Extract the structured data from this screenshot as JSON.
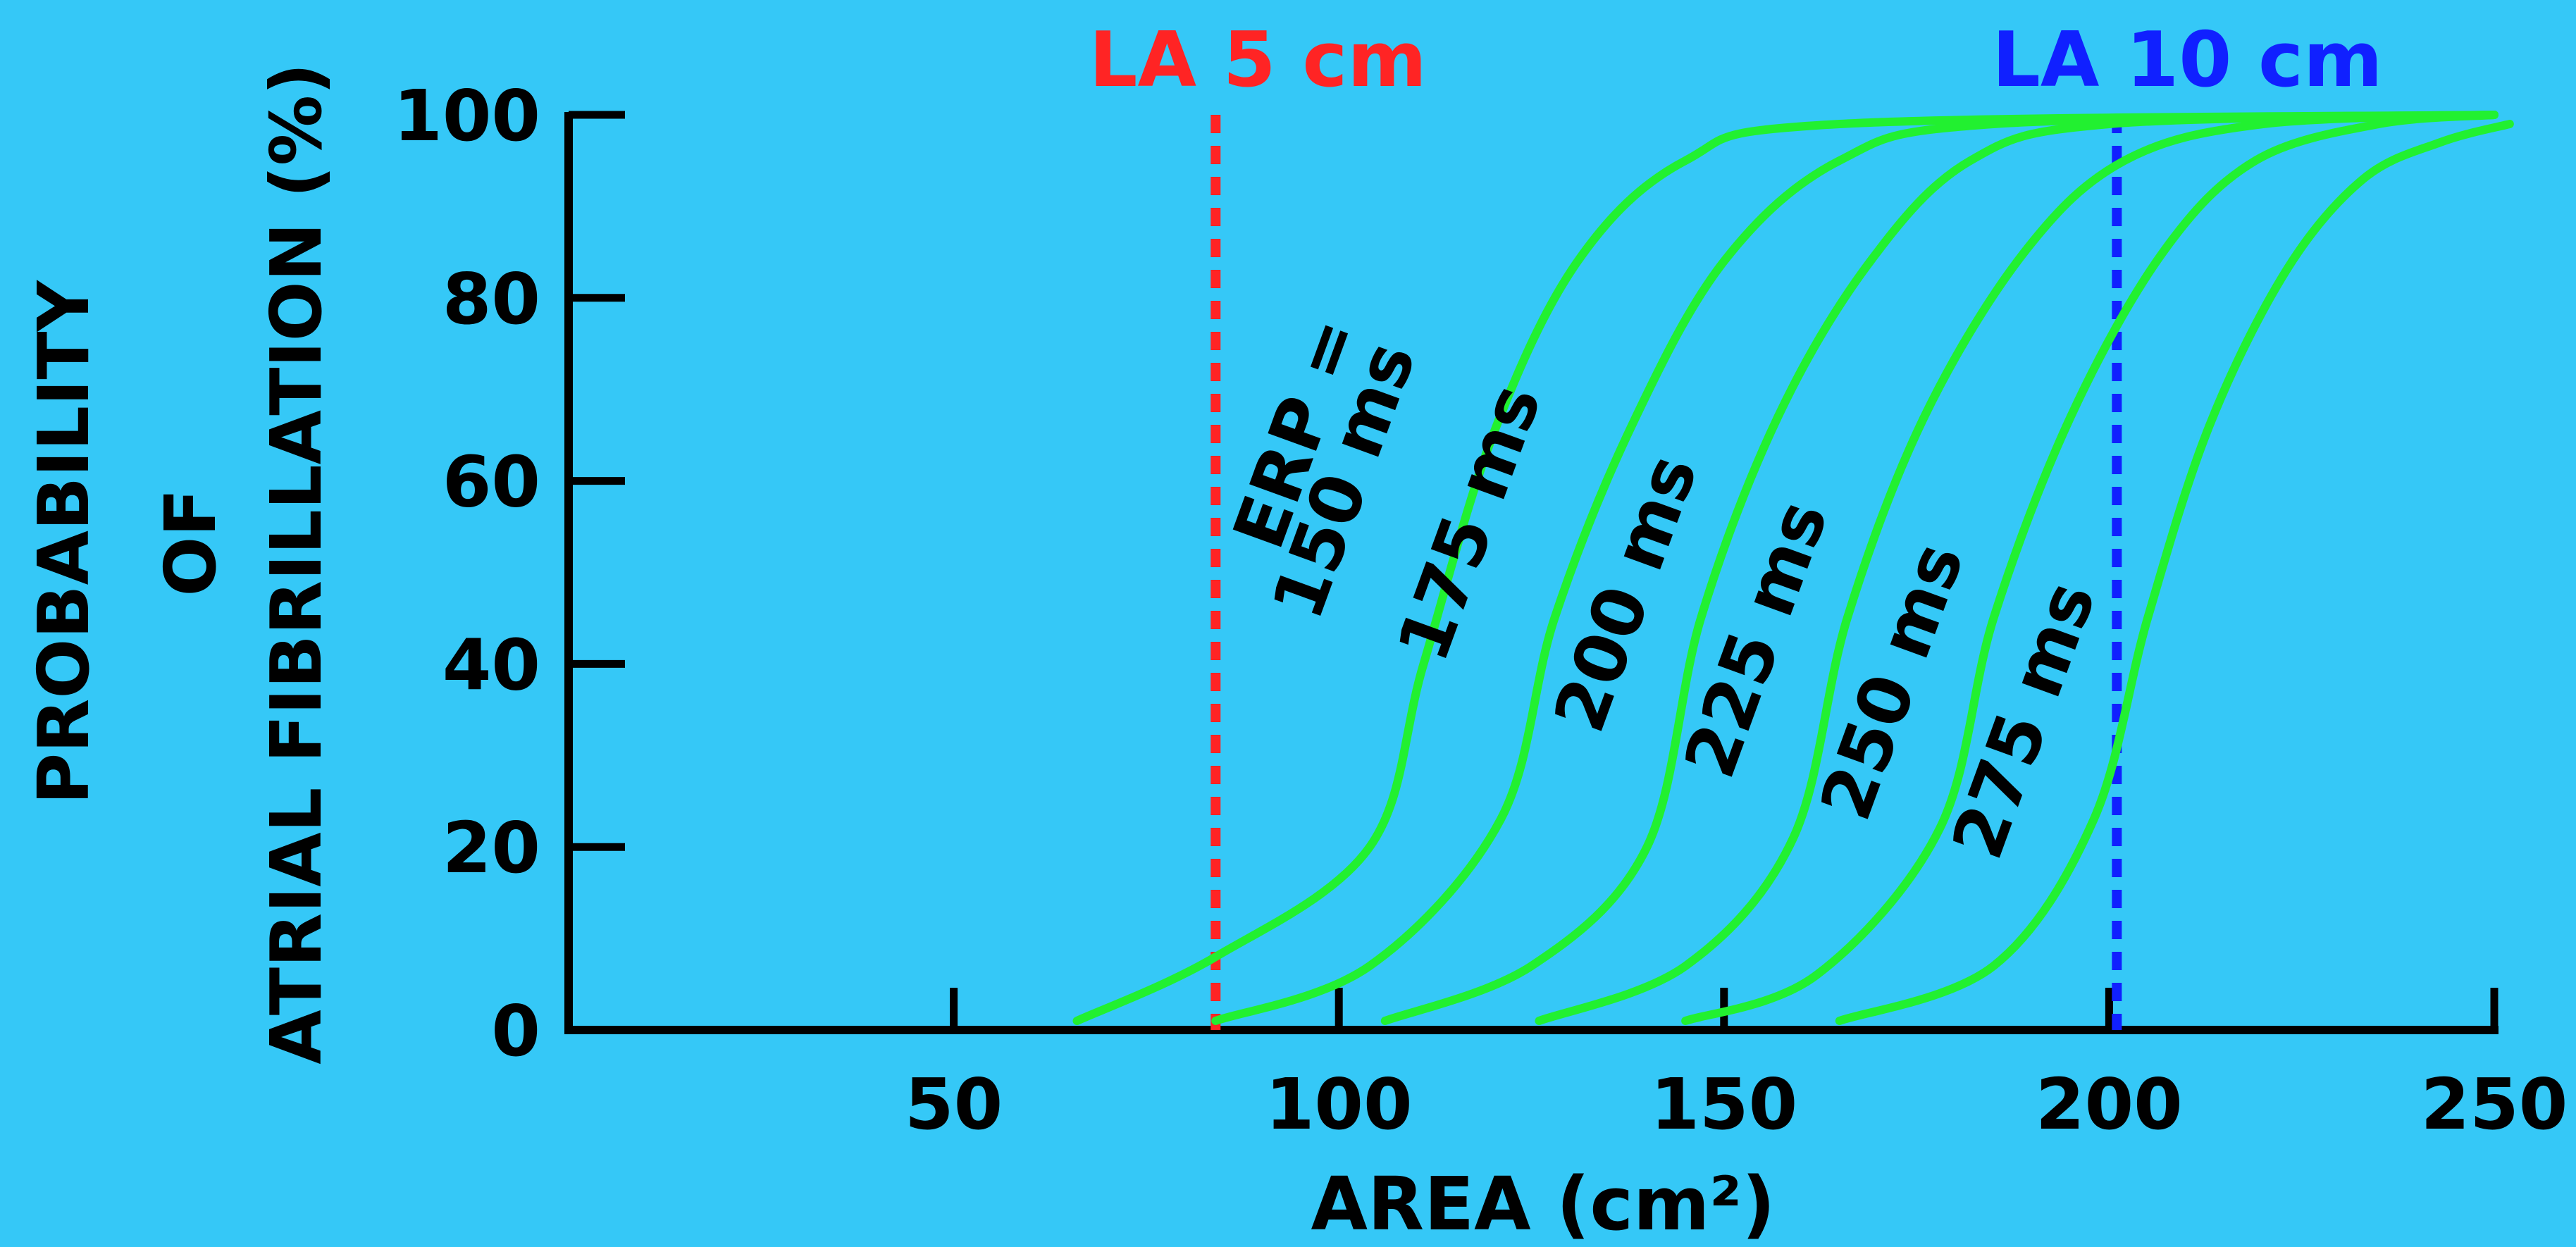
{
  "chart_data": {
    "type": "line",
    "title": "",
    "xlabel": "AREA (cm²)",
    "ylabel_lines": [
      "PROBABILITY",
      "OF",
      "ATRIAL FIBRILLATION (%)"
    ],
    "xlim": [
      0,
      250
    ],
    "ylim": [
      0,
      100
    ],
    "x_ticks": [
      50,
      100,
      150,
      200,
      250
    ],
    "y_ticks": [
      0,
      20,
      40,
      60,
      80,
      100
    ],
    "grid": false,
    "series_prefix": "ERP =",
    "series": [
      {
        "name": "150 ms",
        "x": [
          66,
          84,
          104,
          111,
          120,
          131,
          145,
          165,
          250
        ],
        "y": [
          1,
          8,
          20,
          40,
          65,
          84,
          95,
          99,
          100
        ]
      },
      {
        "name": "175 ms",
        "x": [
          84,
          104,
          121,
          128,
          138,
          150,
          165,
          185,
          250
        ],
        "y": [
          1,
          7,
          23,
          45,
          66,
          84,
          95,
          99,
          100
        ]
      },
      {
        "name": "200 ms",
        "x": [
          106,
          125,
          140,
          147,
          157,
          169,
          182,
          200,
          250
        ],
        "y": [
          1,
          7,
          20,
          45,
          67,
          84,
          95,
          99,
          100
        ]
      },
      {
        "name": "225 ms",
        "x": [
          126,
          145,
          159,
          166,
          176,
          189,
          202,
          220,
          250
        ],
        "y": [
          1,
          7,
          21,
          45,
          67,
          85,
          95,
          99,
          100
        ]
      },
      {
        "name": "250 ms",
        "x": [
          145,
          162,
          178,
          185,
          195,
          207,
          219,
          235,
          250
        ],
        "y": [
          1,
          6,
          22,
          45,
          67,
          85,
          95,
          99,
          100
        ]
      },
      {
        "name": "275 ms",
        "x": [
          165,
          185,
          198,
          205,
          213,
          223,
          233,
          243,
          252
        ],
        "y": [
          1,
          7,
          23,
          45,
          66,
          83,
          93,
          97,
          99
        ]
      }
    ],
    "series_color": "#22f030",
    "reference_lines": [
      {
        "label": "LA 5 cm",
        "x": 84,
        "color": "#ff2424"
      },
      {
        "label": "LA 10 cm",
        "x": 201,
        "color": "#1020ff"
      }
    ]
  }
}
